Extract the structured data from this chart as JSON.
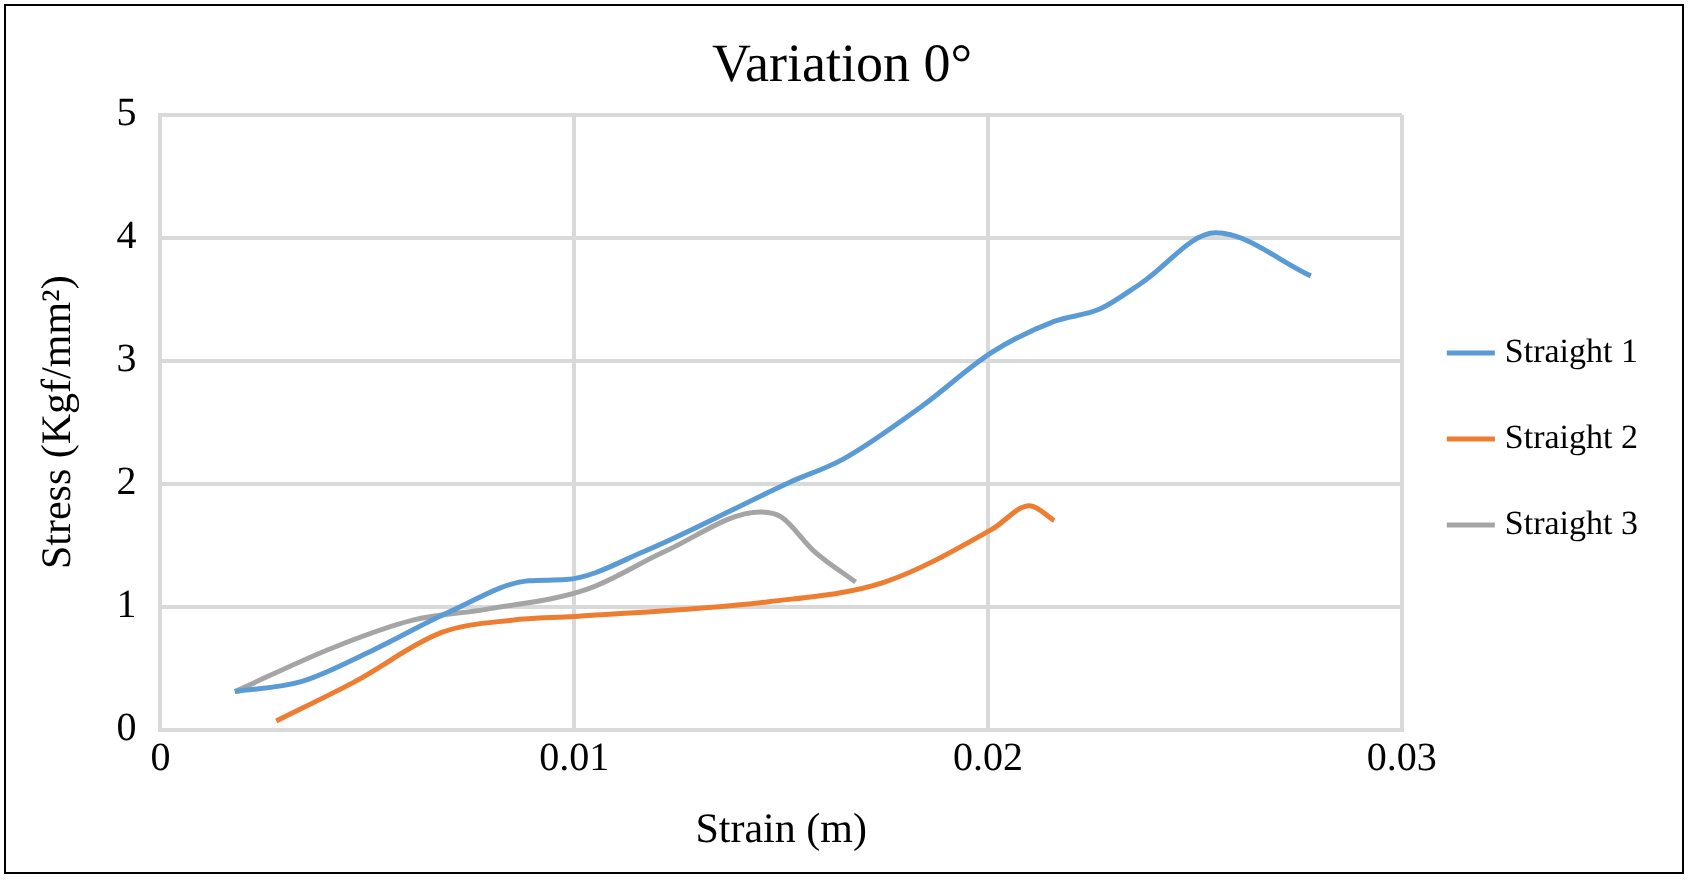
{
  "chart_data": {
    "type": "line",
    "title": "Variation 0°",
    "xlabel": "Strain (m)",
    "ylabel": "Stress (Kgf/mm²)",
    "xlim": [
      0,
      0.03
    ],
    "xticks": [
      0,
      0.01,
      0.02,
      0.03
    ],
    "ylim": [
      0,
      5
    ],
    "yticks": [
      0,
      1,
      2,
      3,
      4,
      5
    ],
    "grid": true,
    "legend": "right",
    "marker": "none",
    "line_style": "solid",
    "series": [
      {
        "name": "Straight 1",
        "color": "#5b9bd5",
        "x": [
          0.0018,
          0.0034,
          0.0051,
          0.007,
          0.0089,
          0.0098,
          0.0117,
          0.0152,
          0.0165,
          0.0184,
          0.0201,
          0.0216,
          0.0227,
          0.0237,
          0.0255,
          0.0278
        ],
        "values": [
          0.31,
          0.39,
          0.64,
          0.96,
          1.21,
          1.22,
          1.45,
          2.01,
          2.2,
          2.63,
          3.07,
          3.32,
          3.42,
          3.63,
          4.04,
          3.69
        ]
      },
      {
        "name": "Straight 2",
        "color": "#ed7d31",
        "x": [
          0.0028,
          0.0047,
          0.0068,
          0.0085,
          0.01,
          0.0147,
          0.0175,
          0.0201,
          0.021,
          0.0216
        ],
        "values": [
          0.07,
          0.39,
          0.79,
          0.89,
          0.92,
          1.04,
          1.2,
          1.63,
          1.82,
          1.7
        ]
      },
      {
        "name": "Straight 3",
        "color": "#a5a5a5",
        "x": [
          0.0018,
          0.0042,
          0.0061,
          0.0079,
          0.0103,
          0.0122,
          0.0145,
          0.015,
          0.0158,
          0.0168
        ],
        "values": [
          0.31,
          0.67,
          0.89,
          0.98,
          1.14,
          1.45,
          1.77,
          1.73,
          1.45,
          1.2
        ]
      }
    ]
  }
}
